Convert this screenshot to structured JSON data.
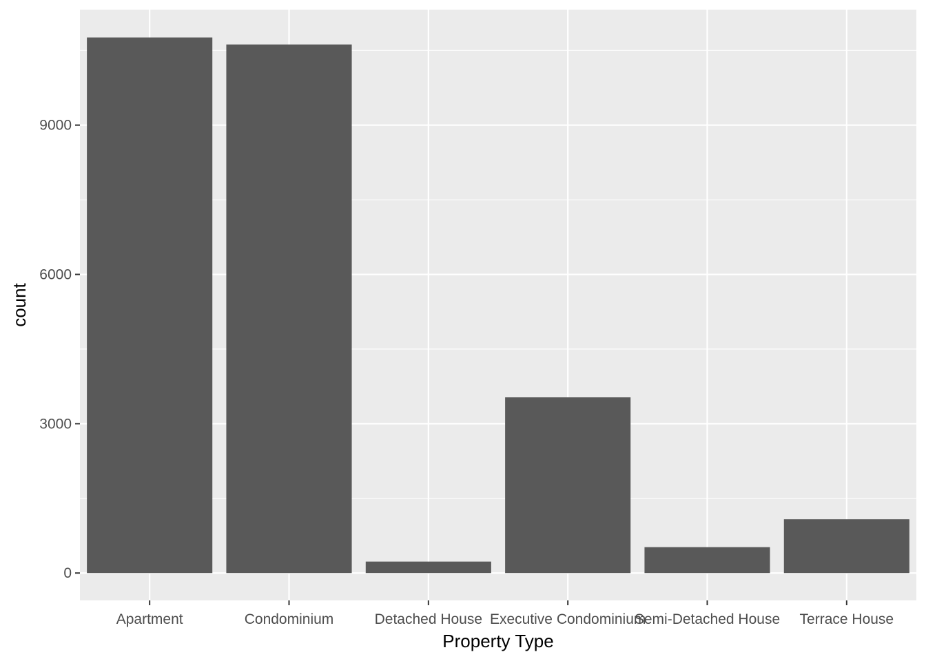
{
  "chart_data": {
    "type": "bar",
    "title": "",
    "xlabel": "Property Type",
    "ylabel": "count",
    "categories": [
      "Apartment",
      "Condominium",
      "Detached House",
      "Executive Condominium",
      "Semi-Detached House",
      "Terrace House"
    ],
    "values": [
      10760,
      10620,
      230,
      3530,
      520,
      1080
    ],
    "ylim": [
      -550,
      11320
    ],
    "yticks": [
      0,
      3000,
      6000,
      9000
    ],
    "grid": true,
    "legend": "none",
    "colors": {
      "bar": "#595959",
      "panel": "#ebebeb",
      "grid": "#ffffff",
      "tick": "#333333"
    }
  }
}
